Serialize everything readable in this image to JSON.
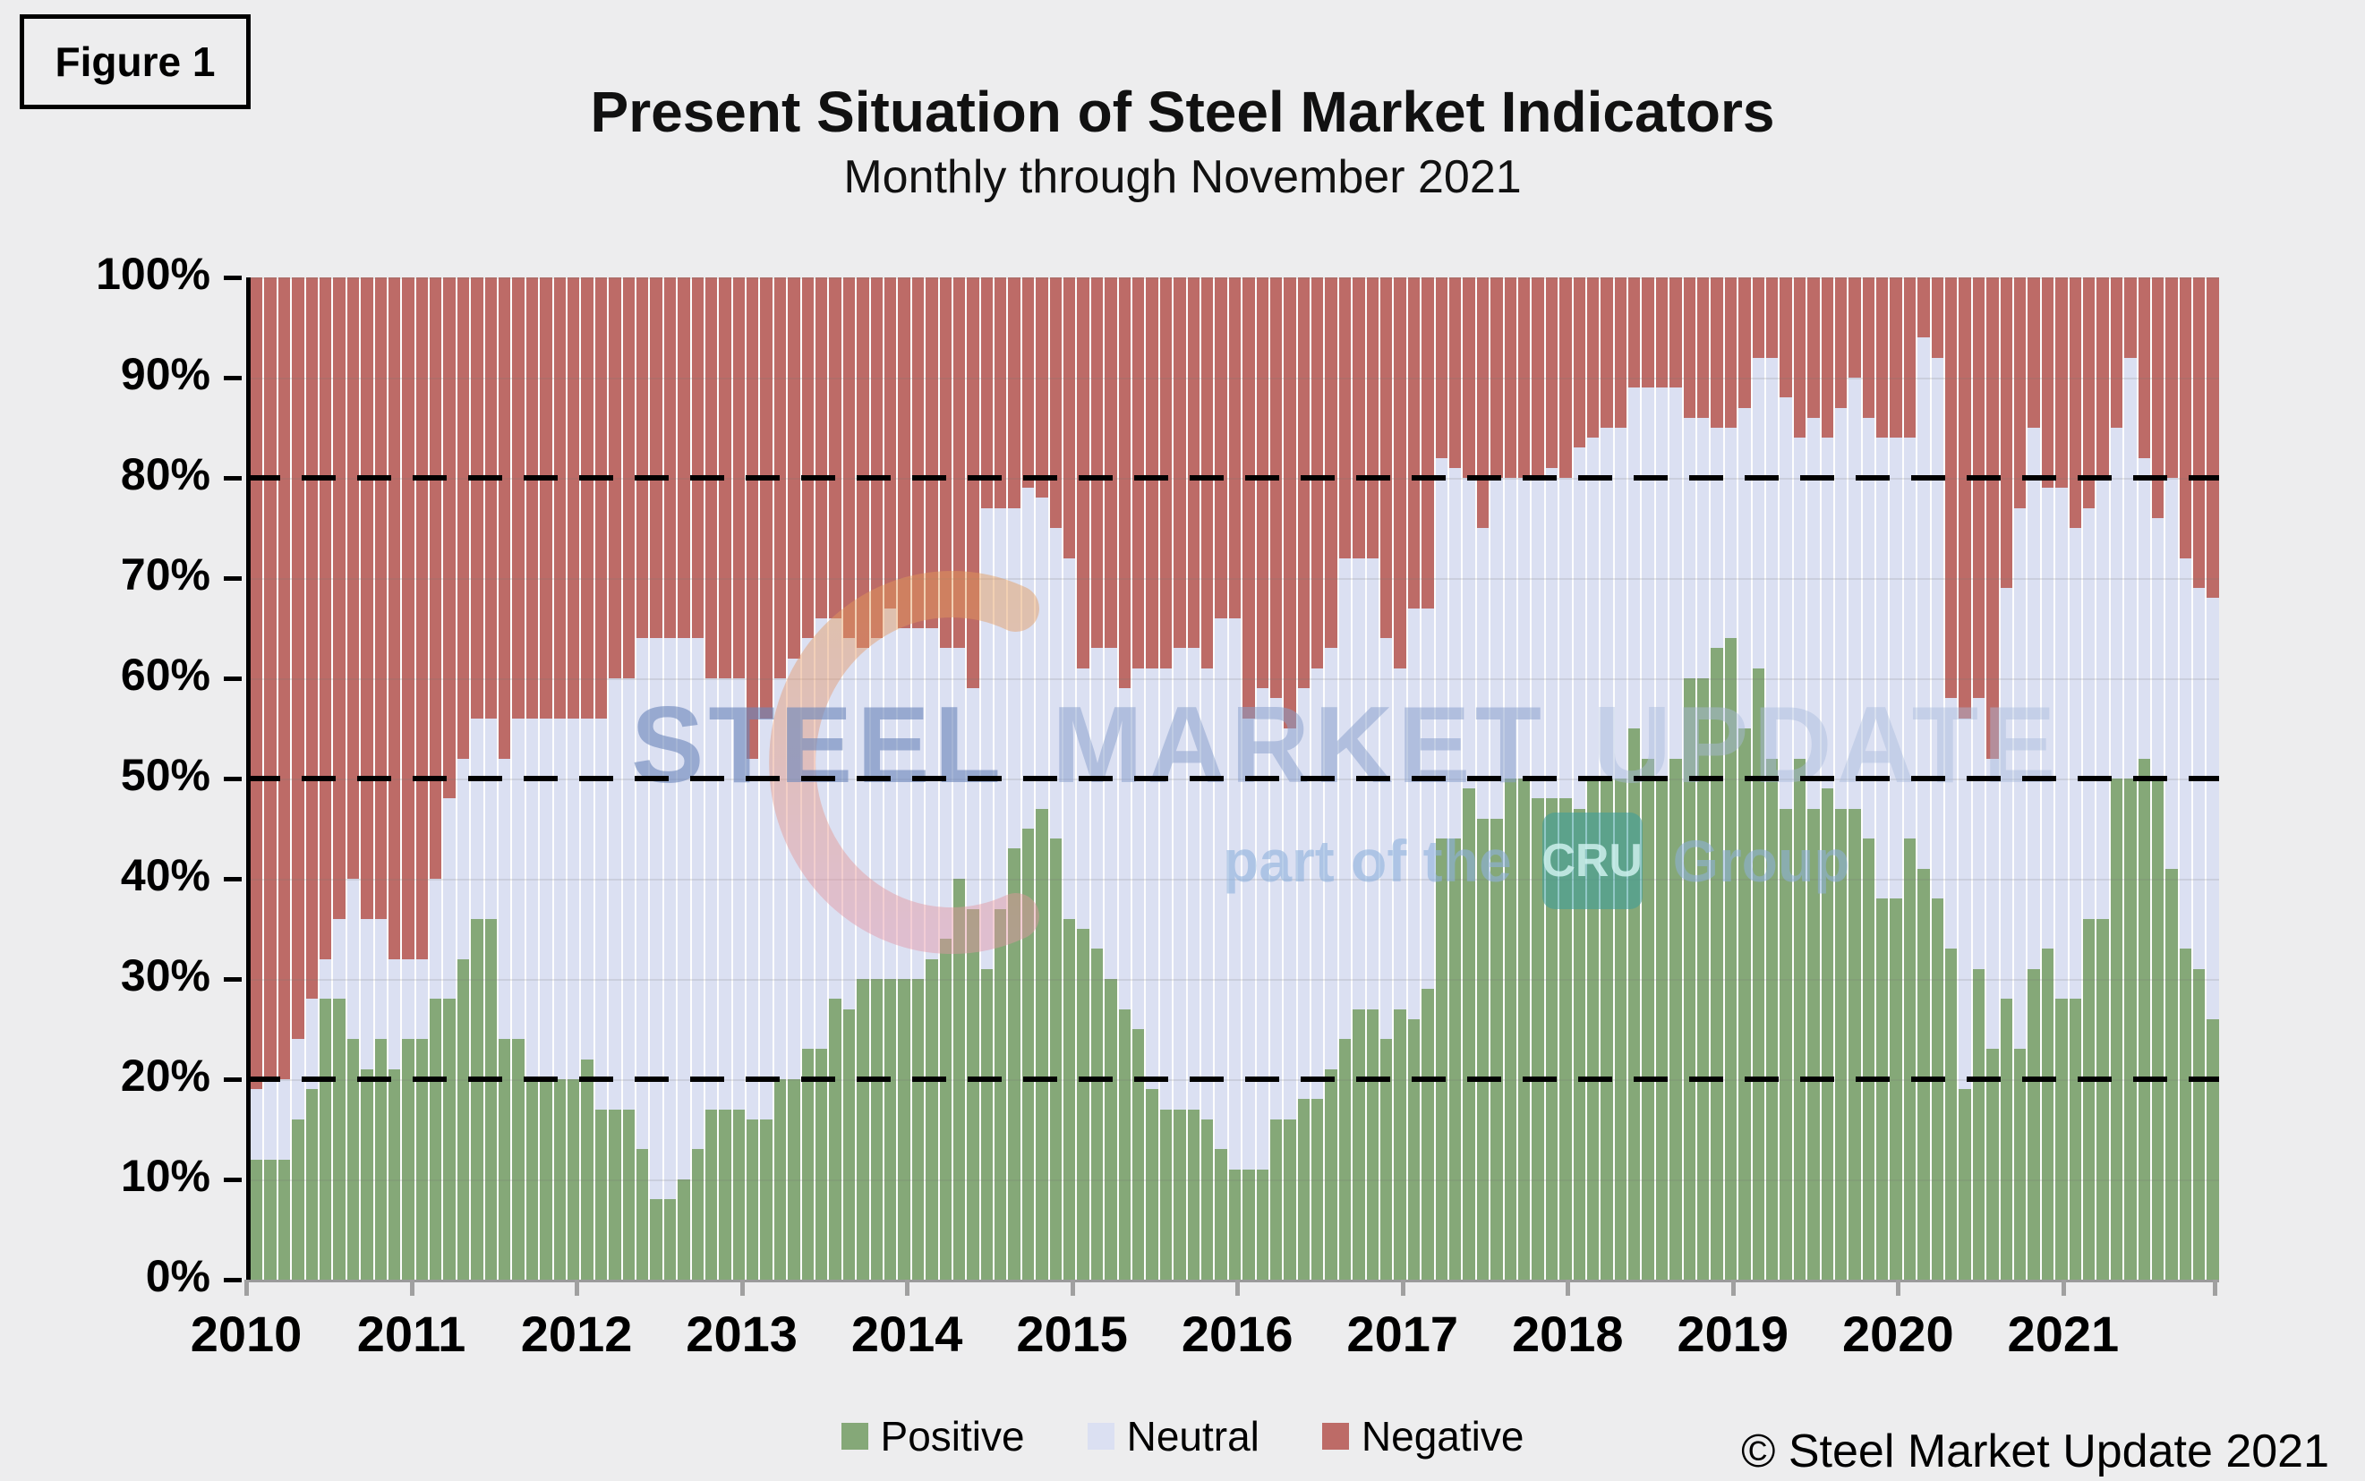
{
  "figure_label": "Figure 1",
  "title": "Present Situation of Steel Market Indicators",
  "subtitle": "Monthly through November 2021",
  "copyright": "© Steel Market Update 2021",
  "watermark": {
    "line1": [
      "STEEL",
      "MARKET",
      "UPDATE"
    ],
    "line2_prefix": "part of the",
    "line2_badge": "CRU",
    "line2_suffix": "Group",
    "badge_color": "#3a9c9a"
  },
  "colors": {
    "positive": "#85a878",
    "neutral": "#dbe0f2",
    "negative": "#bd6b67",
    "background": "#ededee",
    "axis": "#000000"
  },
  "chart_data": {
    "type": "bar",
    "stacked": true,
    "stack_total": 100,
    "title": "Present Situation of Steel Market Indicators",
    "subtitle": "Monthly through November 2021",
    "x_start": "2010-01",
    "x_end": "2021-11",
    "months_per_year": 12,
    "x_tick_labels": [
      "2010",
      "2011",
      "2012",
      "2013",
      "2014",
      "2015",
      "2016",
      "2017",
      "2018",
      "2019",
      "2020",
      "2021"
    ],
    "y_tick_labels": [
      "0%",
      "10%",
      "20%",
      "30%",
      "40%",
      "50%",
      "60%",
      "70%",
      "80%",
      "90%",
      "100%"
    ],
    "ylim": [
      0,
      100
    ],
    "dashed_gridlines": [
      20,
      50,
      80
    ],
    "grid": "subtle horizontal every 10%",
    "legend_position": "bottom-center",
    "series": [
      {
        "name": "Positive",
        "color": "#85a878",
        "values": [
          12,
          12,
          12,
          16,
          19,
          28,
          28,
          24,
          21,
          24,
          21,
          24,
          24,
          28,
          28,
          32,
          36,
          36,
          24,
          24,
          20,
          20,
          20,
          20,
          22,
          17,
          17,
          17,
          13,
          8,
          8,
          10,
          13,
          17,
          17,
          17,
          16,
          16,
          20,
          20,
          23,
          23,
          28,
          27,
          30,
          30,
          30,
          30,
          30,
          32,
          34,
          40,
          37,
          31,
          37,
          43,
          45,
          47,
          44,
          36,
          35,
          33,
          30,
          27,
          25,
          19,
          17,
          17,
          17,
          16,
          13,
          11,
          11,
          11,
          16,
          16,
          18,
          18,
          21,
          24,
          27,
          27,
          24,
          27,
          26,
          29,
          44,
          44,
          49,
          46,
          46,
          50,
          50,
          48,
          48,
          48,
          47,
          50,
          50,
          50,
          55,
          52,
          50,
          52,
          60,
          60,
          63,
          64,
          55,
          61,
          52,
          47,
          52,
          47,
          49,
          47,
          47,
          44,
          38,
          38,
          44,
          41,
          38,
          33,
          19,
          31,
          23,
          28,
          23,
          31,
          33,
          28,
          28,
          36,
          36,
          50,
          50,
          52,
          50,
          41,
          33,
          31,
          26
        ]
      },
      {
        "name": "Neutral",
        "color": "#dbe0f2",
        "values": [
          7,
          8,
          8,
          8,
          9,
          4,
          8,
          16,
          15,
          12,
          11,
          8,
          8,
          12,
          20,
          20,
          20,
          20,
          28,
          32,
          36,
          36,
          36,
          36,
          34,
          39,
          43,
          43,
          51,
          56,
          56,
          54,
          51,
          43,
          43,
          43,
          36,
          40,
          40,
          42,
          41,
          43,
          38,
          37,
          33,
          34,
          37,
          35,
          35,
          33,
          29,
          23,
          22,
          46,
          40,
          34,
          34,
          31,
          31,
          36,
          26,
          30,
          33,
          32,
          36,
          42,
          44,
          46,
          46,
          45,
          53,
          55,
          45,
          48,
          42,
          39,
          41,
          43,
          42,
          48,
          45,
          45,
          40,
          34,
          41,
          38,
          38,
          37,
          31,
          29,
          34,
          30,
          30,
          32,
          33,
          32,
          36,
          34,
          35,
          35,
          34,
          37,
          39,
          37,
          26,
          26,
          22,
          21,
          32,
          31,
          40,
          41,
          32,
          39,
          35,
          40,
          43,
          42,
          46,
          46,
          40,
          53,
          54,
          25,
          37,
          27,
          29,
          41,
          54,
          54,
          46,
          51,
          47,
          41,
          44,
          35,
          42,
          30,
          26,
          39,
          39,
          38,
          42
        ]
      },
      {
        "name": "Negative",
        "color": "#bd6b67",
        "values": [
          81,
          80,
          80,
          76,
          72,
          68,
          64,
          60,
          64,
          64,
          68,
          68,
          68,
          60,
          52,
          48,
          44,
          44,
          48,
          44,
          44,
          44,
          44,
          44,
          44,
          44,
          40,
          40,
          36,
          36,
          36,
          36,
          36,
          40,
          40,
          40,
          48,
          44,
          40,
          38,
          36,
          34,
          34,
          36,
          37,
          36,
          33,
          35,
          35,
          35,
          37,
          37,
          41,
          23,
          23,
          23,
          21,
          22,
          25,
          28,
          39,
          37,
          37,
          41,
          39,
          39,
          39,
          37,
          37,
          39,
          34,
          34,
          44,
          41,
          42,
          45,
          41,
          39,
          37,
          28,
          28,
          28,
          36,
          39,
          33,
          33,
          18,
          19,
          20,
          25,
          20,
          20,
          20,
          20,
          19,
          20,
          17,
          16,
          15,
          15,
          11,
          11,
          11,
          11,
          14,
          14,
          15,
          15,
          13,
          8,
          8,
          12,
          16,
          14,
          16,
          13,
          10,
          14,
          16,
          16,
          16,
          6,
          8,
          42,
          44,
          42,
          48,
          31,
          23,
          15,
          21,
          21,
          25,
          23,
          20,
          15,
          8,
          18,
          24,
          20,
          28,
          31,
          32
        ]
      }
    ]
  }
}
